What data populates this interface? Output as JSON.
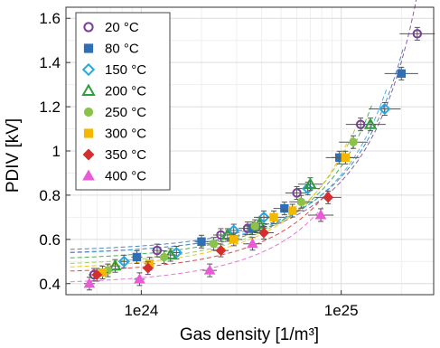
{
  "chart_data": {
    "type": "scatter",
    "xlabel": "Gas density [1/m³]",
    "ylabel": "PDIV [kV]",
    "xscale": "log",
    "xlim": [
      4.2e+23,
      2.9e+25
    ],
    "ylim": [
      0.35,
      1.65
    ],
    "grid": true,
    "legend_position": "top-left",
    "x_ticks": [
      {
        "value": 1e+24,
        "label": "1e24"
      },
      {
        "value": 1e+25,
        "label": "1e25"
      }
    ],
    "y_ticks": [
      {
        "value": 0.4,
        "label": "0.4"
      },
      {
        "value": 0.6,
        "label": "0.6"
      },
      {
        "value": 0.8,
        "label": "0.8"
      },
      {
        "value": 1.0,
        "label": "1"
      },
      {
        "value": 1.2,
        "label": "1.2"
      },
      {
        "value": 1.4,
        "label": "1.4"
      },
      {
        "value": 1.6,
        "label": "1.6"
      }
    ],
    "series": [
      {
        "name": "20 °C",
        "marker": "circle-open",
        "color": "#7b3f98",
        "x": [
          5.8e+23,
          1.2e+24,
          2.5e+24,
          3.4e+24,
          6e+24,
          1.25e+25,
          2.4e+25
        ],
        "y": [
          0.44,
          0.55,
          0.62,
          0.65,
          0.81,
          1.12,
          1.53
        ]
      },
      {
        "name": "80 °C",
        "marker": "square",
        "color": "#2f6fb5",
        "x": [
          9.5e+23,
          2e+24,
          3.6e+24,
          5.2e+24,
          9.8e+24,
          2e+25
        ],
        "y": [
          0.52,
          0.59,
          0.65,
          0.74,
          0.97,
          1.35
        ]
      },
      {
        "name": "150 °C",
        "marker": "diamond-open",
        "color": "#29a8e0",
        "x": [
          8.2e+23,
          1.5e+24,
          2.9e+24,
          4.1e+24,
          6.8e+24,
          1.65e+25
        ],
        "y": [
          0.5,
          0.54,
          0.64,
          0.7,
          0.83,
          1.19
        ]
      },
      {
        "name": "200 °C",
        "marker": "triangle-open",
        "color": "#2e9e3a",
        "x": [
          7.4e+23,
          1.4e+24,
          2.7e+24,
          3.9e+24,
          7e+24,
          1.4e+25
        ],
        "y": [
          0.48,
          0.53,
          0.62,
          0.67,
          0.85,
          1.12
        ]
      },
      {
        "name": "250 °C",
        "marker": "circle",
        "color": "#8bc34a",
        "x": [
          6.8e+23,
          1.3e+24,
          2.3e+24,
          3.7e+24,
          6.3e+24,
          1.15e+25
        ],
        "y": [
          0.46,
          0.52,
          0.58,
          0.66,
          0.77,
          1.04
        ]
      },
      {
        "name": "300 °C",
        "marker": "square",
        "color": "#f5b800",
        "x": [
          6.4e+23,
          1.1e+24,
          2.9e+24,
          4.6e+24,
          5.7e+24,
          1.05e+25
        ],
        "y": [
          0.45,
          0.49,
          0.6,
          0.7,
          0.73,
          0.97
        ]
      },
      {
        "name": "350 °C",
        "marker": "diamond",
        "color": "#d32f2f",
        "x": [
          6e+23,
          1.08e+24,
          2.5e+24,
          4.1e+24,
          8.6e+24
        ],
        "y": [
          0.44,
          0.47,
          0.55,
          0.63,
          0.79
        ]
      },
      {
        "name": "400 °C",
        "marker": "triangle",
        "color": "#e85ad6",
        "x": [
          5.5e+23,
          9.8e+23,
          2.2e+24,
          3.6e+24,
          7.9e+24
        ],
        "y": [
          0.4,
          0.42,
          0.46,
          0.58,
          0.71
        ]
      }
    ]
  }
}
